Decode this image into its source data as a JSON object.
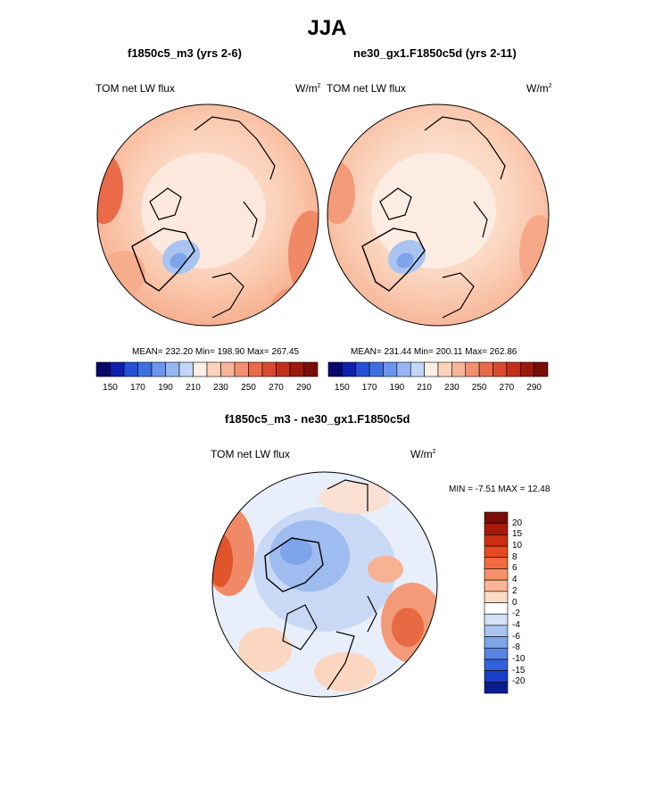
{
  "page": {
    "season_title": "JJA"
  },
  "panels": [
    {
      "case_title": "f1850c5_m3 (yrs 2-6)",
      "variable": "TOM net LW flux",
      "units": "W/m",
      "units_exp": "2",
      "stats": "MEAN= 232.20  Min= 198.90  Max= 267.45"
    },
    {
      "case_title": "ne30_gx1.F1850c5d (yrs 2-11)",
      "variable": "TOM net LW flux",
      "units": "W/m",
      "units_exp": "2",
      "stats": "MEAN= 231.44  Min= 200.11  Max= 262.86"
    }
  ],
  "colorbar_main": {
    "colors": [
      "#08086b",
      "#0f1fb0",
      "#2350d6",
      "#3e70e3",
      "#6a96ee",
      "#95b6f3",
      "#c2d6f8",
      "#fbeee4",
      "#fbd3bc",
      "#f8b497",
      "#f2906f",
      "#ea6a4a",
      "#d94a2e",
      "#c23018",
      "#9c1a0b",
      "#7a0d05"
    ],
    "tick_labels": [
      "150",
      "170",
      "190",
      "210",
      "230",
      "250",
      "270",
      "290"
    ]
  },
  "diff": {
    "title": "f1850c5_m3 - ne30_gx1.F1850c5d",
    "variable": "TOM net LW flux",
    "units": "W/m",
    "units_exp": "2",
    "minmax": "MIN =  -7.51 MAX =  12.48",
    "colorbar": {
      "colors": [
        "#7a0d05",
        "#a81a0b",
        "#cc2e12",
        "#e6481f",
        "#f36a3c",
        "#f79068",
        "#f9b594",
        "#fbdac6",
        "#ffffff",
        "#d4e2f7",
        "#a9c4f1",
        "#7ea4ea",
        "#5884e3",
        "#3262da",
        "#1a3fc4",
        "#0a1e92"
      ],
      "tick_labels": [
        "20",
        "15",
        "10",
        "8",
        "6",
        "4",
        "2",
        "0",
        "-2",
        "-4",
        "-6",
        "-8",
        "-10",
        "-15",
        "-20"
      ]
    }
  }
}
